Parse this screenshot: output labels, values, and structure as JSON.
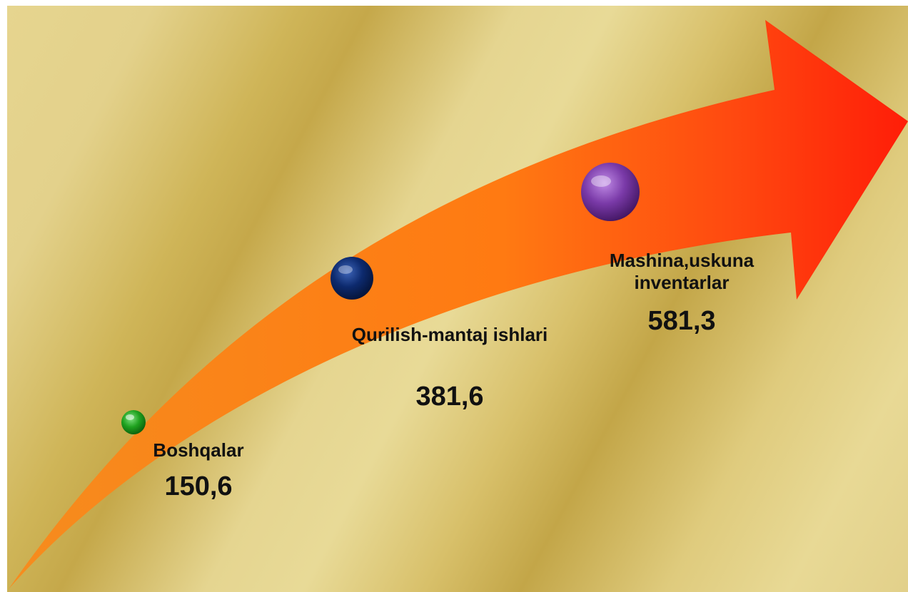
{
  "items": [
    {
      "name": "Boshqalar",
      "value": "150,6",
      "color": "#1fa21f"
    },
    {
      "name": "Qurilish-mantaj ishlari",
      "value": "381,6",
      "color": "#0d2a6e"
    },
    {
      "name": "Mashina,uskuna inventarlar",
      "value": "581,3",
      "color": "#7a3aa8"
    }
  ],
  "arrow": {
    "colors": [
      "#f7941d",
      "#ff6a10",
      "#ff2a0a"
    ]
  }
}
